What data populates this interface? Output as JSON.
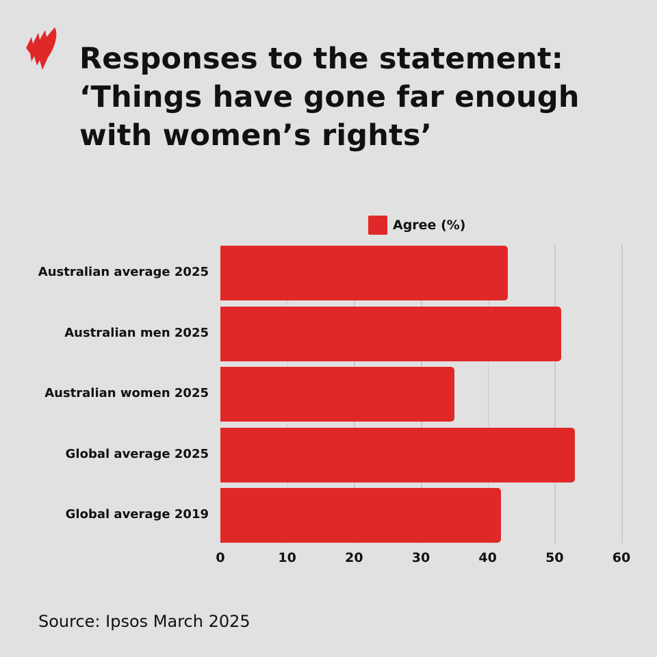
{
  "header": {
    "logo": "sbs-news-logo",
    "title_lines": [
      "Responses to the statement:",
      "‘Things have gone far enough",
      "with women’s rights’"
    ]
  },
  "legend": {
    "label": "Agree (%)",
    "color": "#e12828"
  },
  "source": "Source: Ipsos March 2025",
  "chart_data": {
    "type": "bar",
    "orientation": "horizontal",
    "title": "Responses to the statement: ‘Things have gone far enough with women’s rights’",
    "categories": [
      "Australian average 2025",
      "Australian men 2025",
      "Australian women 2025",
      "Global average 2025",
      "Global average 2019"
    ],
    "series": [
      {
        "name": "Agree (%)",
        "values": [
          43,
          51,
          35,
          53,
          42
        ],
        "color": "#e12828"
      }
    ],
    "xlabel": "",
    "ylabel": "",
    "xlim": [
      0,
      60
    ],
    "xticks": [
      "0",
      "10",
      "20",
      "30",
      "40",
      "50",
      "60"
    ],
    "grid": true,
    "legend_position": "top",
    "source": "Source: Ipsos March 2025"
  }
}
